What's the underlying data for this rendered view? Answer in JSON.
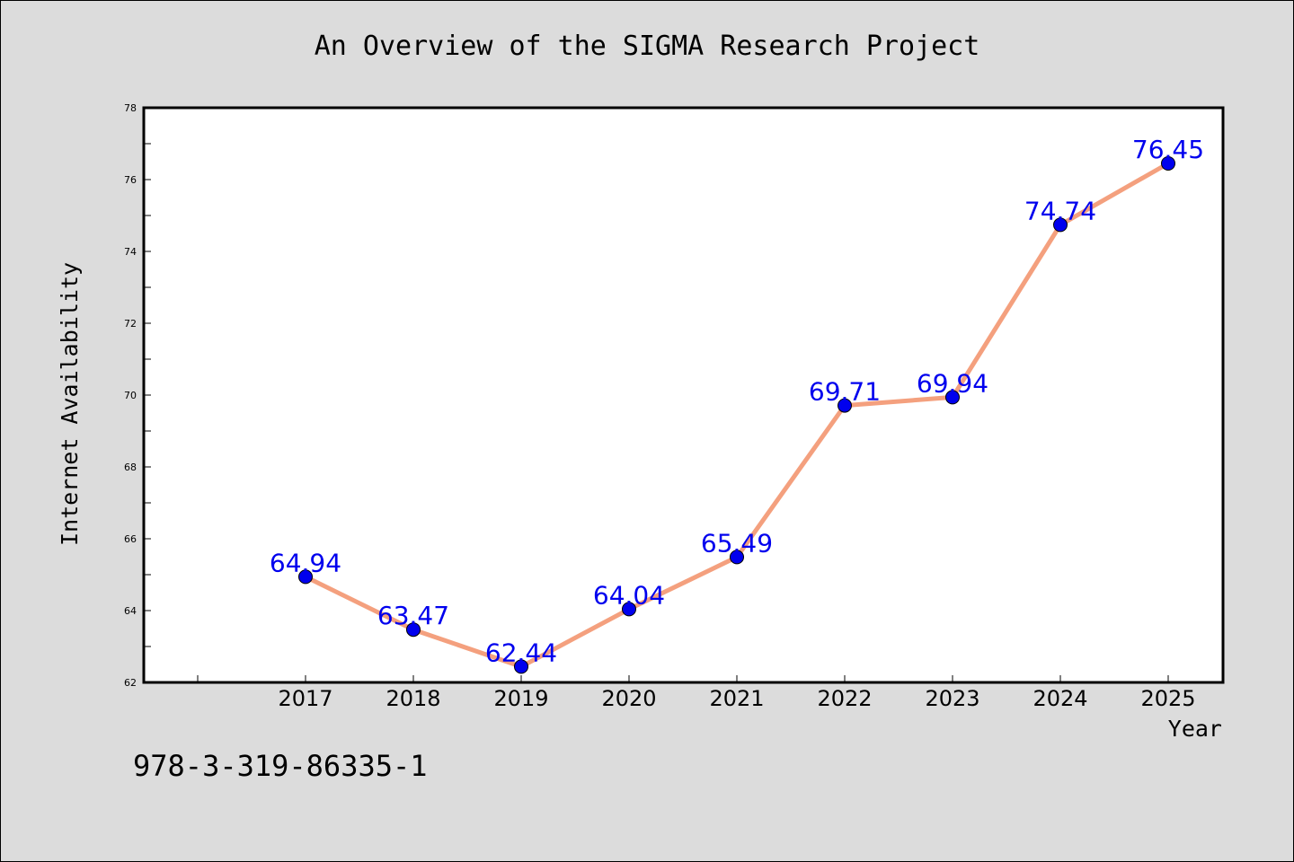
{
  "chart_data": {
    "type": "line",
    "title": "An Overview of the SIGMA Research Project",
    "xlabel": "Year",
    "ylabel": "Internet Availability",
    "categories": [
      "2017",
      "2018",
      "2019",
      "2020",
      "2021",
      "2022",
      "2023",
      "2024",
      "2025"
    ],
    "series": [
      {
        "values": [
          64.94,
          63.47,
          62.44,
          64.04,
          65.49,
          69.71,
          69.94,
          74.74,
          76.45
        ],
        "data_labels": [
          "64.94",
          "63.47",
          "62.44",
          "64.04",
          "65.49",
          "69.71",
          "69.94",
          "74.74",
          "76.45"
        ],
        "line_color": "#f4a07e",
        "marker_color": "#0000ee"
      }
    ],
    "ylim": [
      62,
      78
    ],
    "yticks": [
      "62",
      "64",
      "66",
      "68",
      "70",
      "72",
      "74",
      "76",
      "78"
    ],
    "grid": false,
    "legend": "none",
    "label_color": "#0000ee"
  },
  "footer": {
    "id_text": "978-3-319-86335-1"
  }
}
